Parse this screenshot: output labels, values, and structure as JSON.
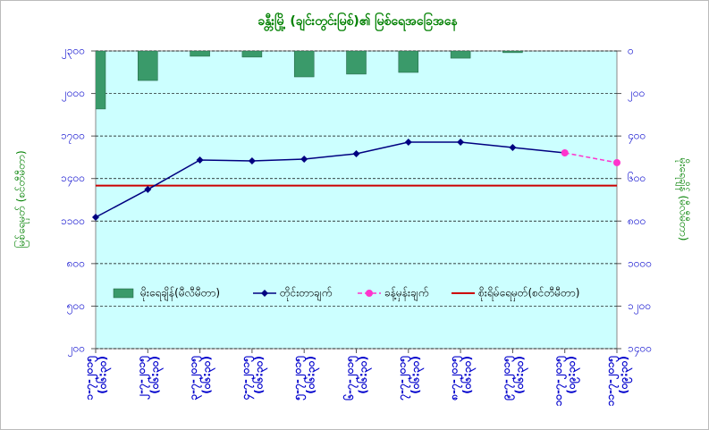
{
  "chart_data": {
    "type": "bar-line",
    "title": "ခန္တီးမြို့ (ချင်းတွင်းမြစ်)၏ မြစ်ရေအခြေအနေ",
    "ylabel": "မြစ်ရေမှတ် (စင်တီမီတာ)",
    "y2label": "မိုးရေချိန် (မီလီမီတာ)",
    "categories": [
      "၁-၇-၂၀၁၅",
      "၂-၇-၂၀၁၅",
      "၃-၇-၂၀၁၅",
      "၄-၇-၂၀၁၅",
      "၅-၇-၂၀၁၅",
      "၆-၇-၂၀၁၅",
      "၇-၇-၂၀၁၅",
      "၈-၇-၂၀၁၅",
      "၉-၇-၂၀၁၅",
      "၁၀-၇-၂၀၁၅",
      "၁၁-၇-၂၀၁၅"
    ],
    "category_times": [
      "(၀၆:၃၀)",
      "(၀၆:၃၀)",
      "(၀၆:၃၀)",
      "(၀၆:၃၀)",
      "(၀၆:၃၀)",
      "(၀၆:၃၀)",
      "(၀၆:၃၀)",
      "(၀၆:၃၀)",
      "(၀၆:၃၀)",
      "(၀၉:၃၀)",
      "(၀၉:၃၀)"
    ],
    "ylim": [
      200,
      2300
    ],
    "yticks": [
      {
        "value": 200,
        "label": "၂၀၀"
      },
      {
        "value": 500,
        "label": "၅၀၀"
      },
      {
        "value": 800,
        "label": "၈၀၀"
      },
      {
        "value": 1100,
        "label": "၁၁၀၀"
      },
      {
        "value": 1400,
        "label": "၁၄၀၀"
      },
      {
        "value": 1700,
        "label": "၁၇၀၀"
      },
      {
        "value": 2000,
        "label": "၂၀၀၀"
      },
      {
        "value": 2300,
        "label": "၂၃၀၀"
      }
    ],
    "y2lim": [
      0,
      1400
    ],
    "y2_inverted": true,
    "y2ticks": [
      {
        "value": 0,
        "label": "၀"
      },
      {
        "value": 200,
        "label": "၂၀၀"
      },
      {
        "value": 400,
        "label": "၄၀၀"
      },
      {
        "value": 600,
        "label": "၆၀၀"
      },
      {
        "value": 800,
        "label": "၈၀၀"
      },
      {
        "value": 1000,
        "label": "၁၀၀၀"
      },
      {
        "value": 1200,
        "label": "၁၂၀၀"
      },
      {
        "value": 1400,
        "label": "၁၄၀၀"
      }
    ],
    "grid": true,
    "series": [
      {
        "name": "မိုးရေချိန်(မီလီမီတာ)",
        "type": "bar",
        "axis": "y2",
        "color": "#3a9a6a",
        "values": [
          273,
          139,
          25,
          29,
          122,
          109,
          101,
          34,
          8,
          null,
          null
        ]
      },
      {
        "name": "တိုင်းတာချက်",
        "type": "line",
        "color": "#000080",
        "marker": "diamond",
        "values": [
          1127,
          1323,
          1531,
          1524,
          1537,
          1575,
          1657,
          1657,
          1619,
          1581,
          null
        ]
      },
      {
        "name": "ခန့်မှန်းချက်",
        "type": "line",
        "color": "#ff33cc",
        "dashed": true,
        "marker": "circle",
        "values": [
          null,
          null,
          null,
          null,
          null,
          null,
          null,
          null,
          null,
          1581,
          1512
        ]
      }
    ],
    "reference_line": {
      "name": "စိုးရိမ်ရေမှတ်(စင်တီမီတာ)",
      "value": 1350,
      "color": "#cc0000"
    }
  }
}
